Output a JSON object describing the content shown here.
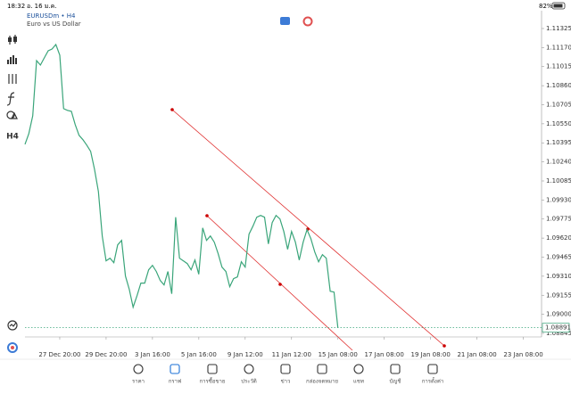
{
  "status_bar": {
    "time": "18:32",
    "date": "อ. 16 ม.ค.",
    "battery": "82%"
  },
  "chart": {
    "symbol": "EURUSDm • H4",
    "description": "Euro vs US Dollar",
    "timeframe_button": "H4",
    "color": "#3aa57a",
    "values": [
      1.10383,
      1.1047,
      1.10615,
      1.11064,
      1.11028,
      1.11086,
      1.11144,
      1.11158,
      1.11195,
      1.11108,
      1.10673,
      1.10659,
      1.10651,
      1.10543,
      1.10456,
      1.1042,
      1.10376,
      1.10326,
      1.10181,
      1.09999,
      1.09637,
      1.09435,
      1.09456,
      1.0942,
      1.09565,
      1.09601,
      1.09311,
      1.09203,
      1.09058,
      1.09152,
      1.09254,
      1.09254,
      1.09362,
      1.09398,
      1.09348,
      1.09275,
      1.09239,
      1.09348,
      1.09167,
      1.0979,
      1.09456,
      1.09435,
      1.09413,
      1.09362,
      1.09442,
      1.09326,
      1.09703,
      1.09601,
      1.09637,
      1.09587,
      1.09493,
      1.09384,
      1.09348,
      1.09225,
      1.0929,
      1.09304,
      1.09427,
      1.09384,
      1.09652,
      1.09717,
      1.0979,
      1.09804,
      1.0979,
      1.09572,
      1.09746,
      1.09804,
      1.09775,
      1.09674,
      1.09529,
      1.09674,
      1.09587,
      1.09442,
      1.09587,
      1.09688,
      1.09616,
      1.09507,
      1.09427,
      1.09485,
      1.09456,
      1.09188,
      1.09181,
      1.08891
    ],
    "current_price": 1.08891,
    "ylim": [
      1.08816,
      1.1147
    ],
    "yticks": [
      {
        "value": 1.11325,
        "label": "1.11325"
      },
      {
        "value": 1.1117,
        "label": "1.11170"
      },
      {
        "value": 1.11015,
        "label": "1.11015"
      },
      {
        "value": 1.1086,
        "label": "1.10860"
      },
      {
        "value": 1.10705,
        "label": "1.10705"
      },
      {
        "value": 1.1055,
        "label": "1.10550"
      },
      {
        "value": 1.10395,
        "label": "1.10395"
      },
      {
        "value": 1.1024,
        "label": "1.10240"
      },
      {
        "value": 1.10085,
        "label": "1.10085"
      },
      {
        "value": 1.0993,
        "label": "1.09930"
      },
      {
        "value": 1.09775,
        "label": "1.09775"
      },
      {
        "value": 1.0962,
        "label": "1.09620"
      },
      {
        "value": 1.09465,
        "label": "1.09465"
      },
      {
        "value": 1.0931,
        "label": "1.09310"
      },
      {
        "value": 1.09155,
        "label": "1.09155"
      },
      {
        "value": 1.09,
        "label": "1.09000"
      },
      {
        "value": 1.08845,
        "label": "1.08845"
      }
    ],
    "xtick_labels": [
      "27 Dec 20:00",
      "29 Dec 20:00",
      "3 Jan 16:00",
      "5 Jan 16:00",
      "9 Jan 12:00",
      "11 Jan 12:00",
      "15 Jan 08:00",
      "17 Jan 08:00",
      "19 Jan 08:00",
      "21 Jan 08:00",
      "23 Jan 08:00"
    ]
  },
  "nav": [
    "ราคา",
    "กราฟ",
    "การซื้อขาย",
    "ประวัติ",
    "ข่าว",
    "กล่องจดหมาย",
    "แชท",
    "บัญชี",
    "การตั้งค่า"
  ]
}
